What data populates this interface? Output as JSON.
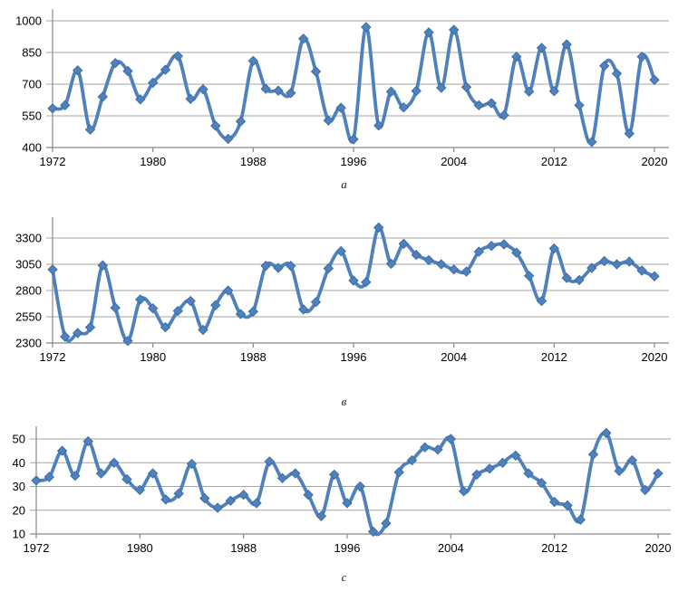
{
  "page": {
    "background": "#ffffff"
  },
  "colors": {
    "series": "#4f81bd",
    "marker_edge": "#3d6da5",
    "gridline": "#a6a6a6",
    "axis_line": "#898989",
    "tick_label": "#000000",
    "caption": "#17171f"
  },
  "chart_data": [
    {
      "type": "line",
      "title": "a",
      "marker": "diamond",
      "smooth": true,
      "legend": "none",
      "grid": "horizontal",
      "x_range": [
        1972,
        2020
      ],
      "x_step": 1,
      "xticks": [
        1972,
        1980,
        1988,
        1996,
        2004,
        2012,
        2020
      ],
      "yticks": [
        400,
        550,
        700,
        850,
        1000
      ],
      "ylim": [
        400,
        1000
      ],
      "values": [
        585,
        600,
        765,
        485,
        640,
        800,
        762,
        628,
        707,
        768,
        833,
        630,
        676,
        503,
        441,
        524,
        810,
        678,
        669,
        658,
        915,
        760,
        528,
        588,
        439,
        970,
        504,
        665,
        590,
        668,
        945,
        683,
        957,
        686,
        600,
        610,
        553,
        830,
        665,
        872,
        667,
        888,
        600,
        426,
        787,
        750,
        466,
        830,
        720
      ]
    },
    {
      "type": "line",
      "title": "в",
      "marker": "diamond",
      "smooth": true,
      "legend": "none",
      "grid": "horizontal",
      "x_range": [
        1972,
        2020
      ],
      "x_step": 1,
      "xticks": [
        1972,
        1980,
        1988,
        1996,
        2004,
        2012,
        2020
      ],
      "yticks": [
        2300,
        2550,
        2800,
        3050,
        3300
      ],
      "ylim": [
        2300,
        3300
      ],
      "values": [
        3000,
        2360,
        2395,
        2450,
        3040,
        2635,
        2320,
        2715,
        2630,
        2450,
        2605,
        2700,
        2425,
        2660,
        2800,
        2575,
        2600,
        3035,
        3015,
        3035,
        2620,
        2690,
        3010,
        3175,
        2895,
        2880,
        3400,
        3055,
        3245,
        3140,
        3090,
        3050,
        3000,
        2980,
        3170,
        3225,
        3240,
        3160,
        2940,
        2700,
        3200,
        2920,
        2900,
        3015,
        3080,
        3050,
        3075,
        2990,
        2935
      ]
    },
    {
      "type": "line",
      "title": "c",
      "marker": "diamond",
      "smooth": true,
      "legend": "none",
      "grid": "horizontal",
      "x_range": [
        1972,
        2020
      ],
      "x_step": 1,
      "xticks": [
        1972,
        1980,
        1988,
        1996,
        2004,
        2012,
        2020
      ],
      "yticks": [
        10,
        20,
        30,
        40,
        50
      ],
      "ylim": [
        10,
        50
      ],
      "values": [
        32.5,
        34,
        45,
        34.5,
        49,
        35.5,
        40,
        33,
        28.5,
        35.5,
        24.5,
        27,
        39.5,
        25,
        21,
        24,
        26.5,
        23,
        40.5,
        33.5,
        35.5,
        26.5,
        17.5,
        35,
        23,
        30,
        11,
        14.5,
        36,
        41,
        46.5,
        45.5,
        50,
        28,
        35,
        37.5,
        40,
        43,
        35.5,
        31.5,
        23.5,
        22,
        16,
        43.5,
        52.5,
        36.5,
        41,
        28.5,
        35.5
      ]
    }
  ]
}
